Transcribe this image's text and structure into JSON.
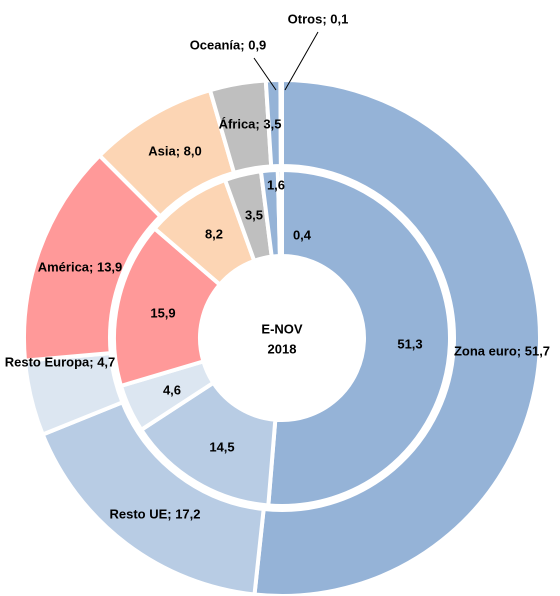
{
  "chart_data": {
    "type": "donut",
    "center_label": [
      "E-NOV",
      "2018"
    ],
    "colors": [
      "#95b3d7",
      "#b8cce4",
      "#dce6f1",
      "#ff9999",
      "#fcd5b4",
      "#bfbfbf",
      "#95b3d7",
      "#95b3d7"
    ],
    "series": [
      {
        "values": [
          51.7,
          17.2,
          4.7,
          13.9,
          8.0,
          3.5,
          0.9,
          0.1
        ],
        "value_labels": [
          "Zona euro; 51,7",
          "Resto UE; 17,2",
          "Resto Europa; 4,7",
          "América; 13,9",
          "Asia; 8,0",
          "África; 3,5",
          "Oceanía; 0,9",
          "Otros; 0,1"
        ]
      },
      {
        "values": [
          51.3,
          14.5,
          4.6,
          15.9,
          8.2,
          3.5,
          1.6,
          0.4
        ],
        "value_labels": [
          "51,3",
          "14,5",
          "4,6",
          "15,9",
          "8,2",
          "3,5",
          "1,6",
          "0,4"
        ]
      }
    ]
  }
}
